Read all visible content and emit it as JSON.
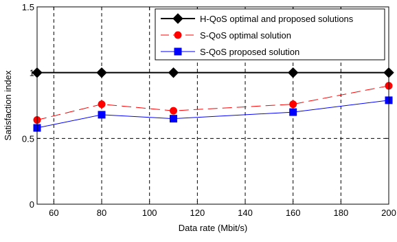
{
  "chart_data": {
    "type": "line",
    "title": "",
    "xlabel": "Data rate (Mbit/s)",
    "ylabel": "Satisfaction index",
    "xlim": [
      53,
      200
    ],
    "ylim": [
      0,
      1.5
    ],
    "xticks": [
      60,
      80,
      100,
      120,
      140,
      160,
      180,
      200
    ],
    "yticks": [
      0,
      0.5,
      1,
      1.5
    ],
    "ytick_labels": [
      "0",
      "0.5",
      "1",
      "1.5"
    ],
    "grid": true,
    "legend_position": "top-right",
    "x": [
      53,
      80,
      110,
      160,
      200
    ],
    "series": [
      {
        "name": "H-QoS optimal and proposed solutions",
        "values": [
          1.0,
          1.0,
          1.0,
          1.0,
          1.0
        ],
        "color": "#000000",
        "marker": "diamond",
        "line": "solid"
      },
      {
        "name": "S-QoS optimal solution",
        "values": [
          0.64,
          0.76,
          0.71,
          0.76,
          0.9
        ],
        "color": "#ff0000",
        "marker": "circle",
        "line": "dashed"
      },
      {
        "name": "S-QoS proposed solution",
        "values": [
          0.58,
          0.68,
          0.65,
          0.7,
          0.79
        ],
        "color": "#0000ff",
        "marker": "square",
        "line": "solid"
      }
    ]
  }
}
